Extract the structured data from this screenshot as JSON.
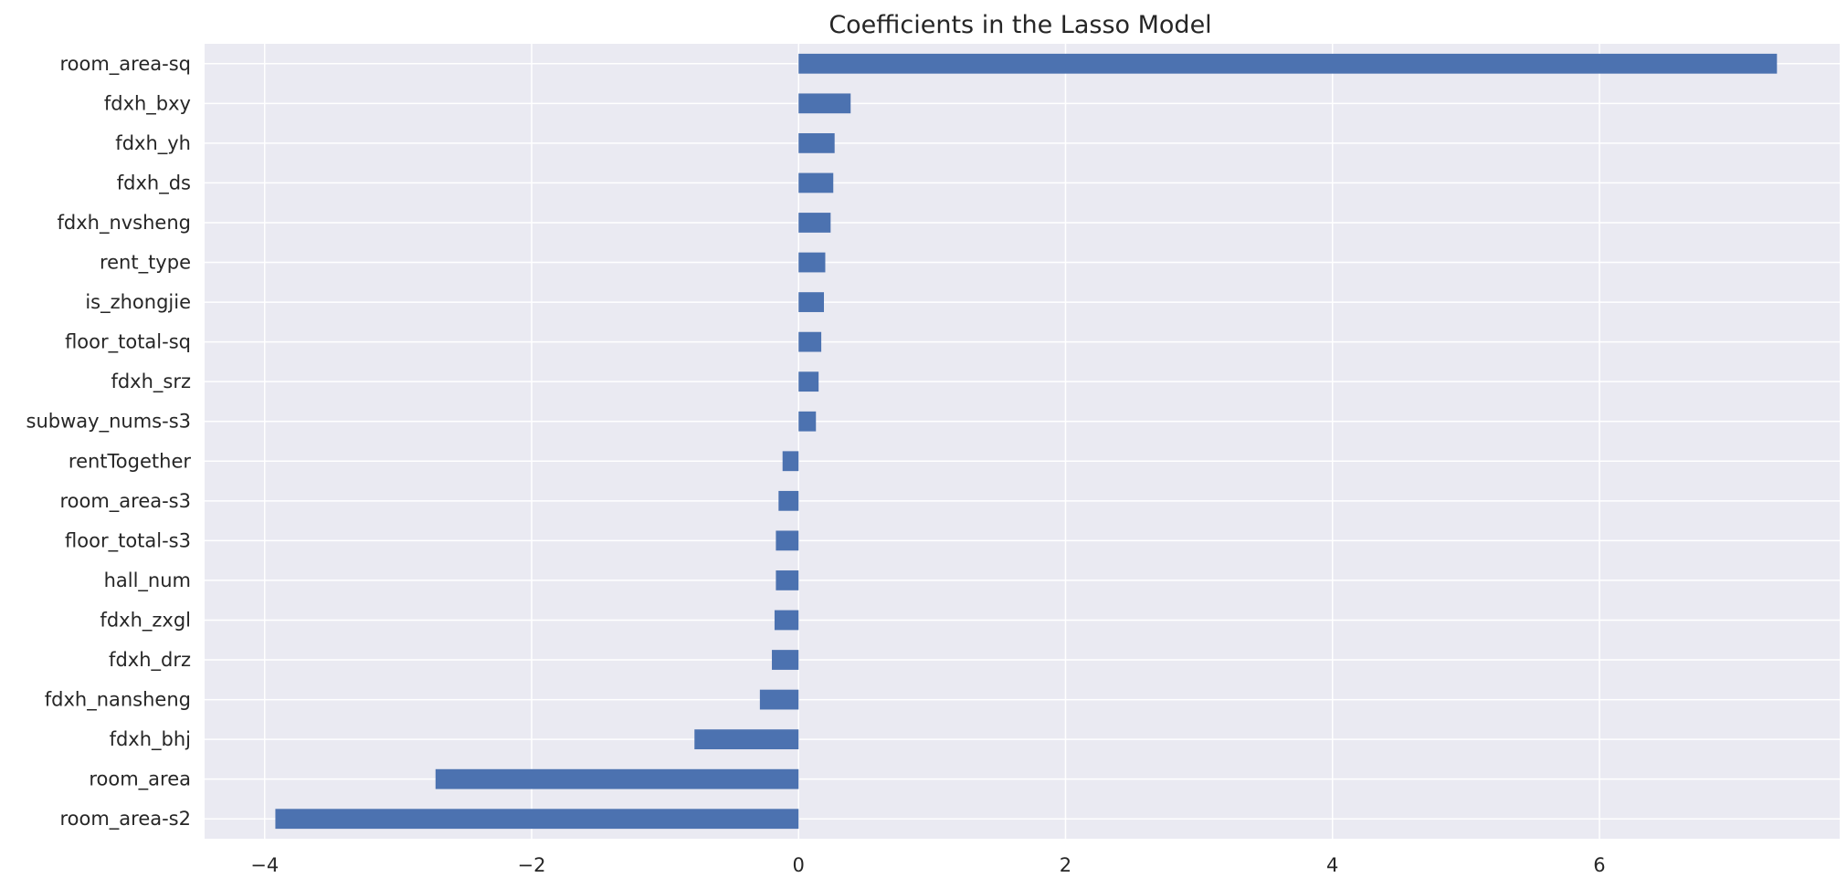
{
  "chart_data": {
    "type": "bar",
    "orientation": "horizontal",
    "title": "Coefficients in the Lasso Model",
    "xlabel": "",
    "ylabel": "",
    "categories": [
      "room_area-sq",
      "fdxh_bxy",
      "fdxh_yh",
      "fdxh_ds",
      "fdxh_nvsheng",
      "rent_type",
      "is_zhongjie",
      "floor_total-sq",
      "fdxh_srz",
      "subway_nums-s3",
      "rentTogether",
      "room_area-s3",
      "floor_total-s3",
      "hall_num",
      "fdxh_zxgl",
      "fdxh_drz",
      "fdxh_nansheng",
      "fdxh_bhj",
      "room_area",
      "room_area-s2"
    ],
    "values": [
      7.33,
      0.39,
      0.27,
      0.26,
      0.24,
      0.2,
      0.19,
      0.17,
      0.15,
      0.13,
      -0.12,
      -0.15,
      -0.17,
      -0.17,
      -0.18,
      -0.2,
      -0.29,
      -0.78,
      -2.72,
      -3.92
    ],
    "xlim": [
      -4.45,
      7.8
    ],
    "xticks": [
      -4,
      -2,
      0,
      2,
      4,
      6
    ],
    "xtick_labels": [
      "−4",
      "−2",
      "0",
      "2",
      "4",
      "6"
    ],
    "grid": true,
    "legend": "none",
    "colors": {
      "bar": "#4c72b0",
      "plot_background": "#eaeaf2",
      "grid": "#ffffff",
      "text": "#262626"
    }
  }
}
